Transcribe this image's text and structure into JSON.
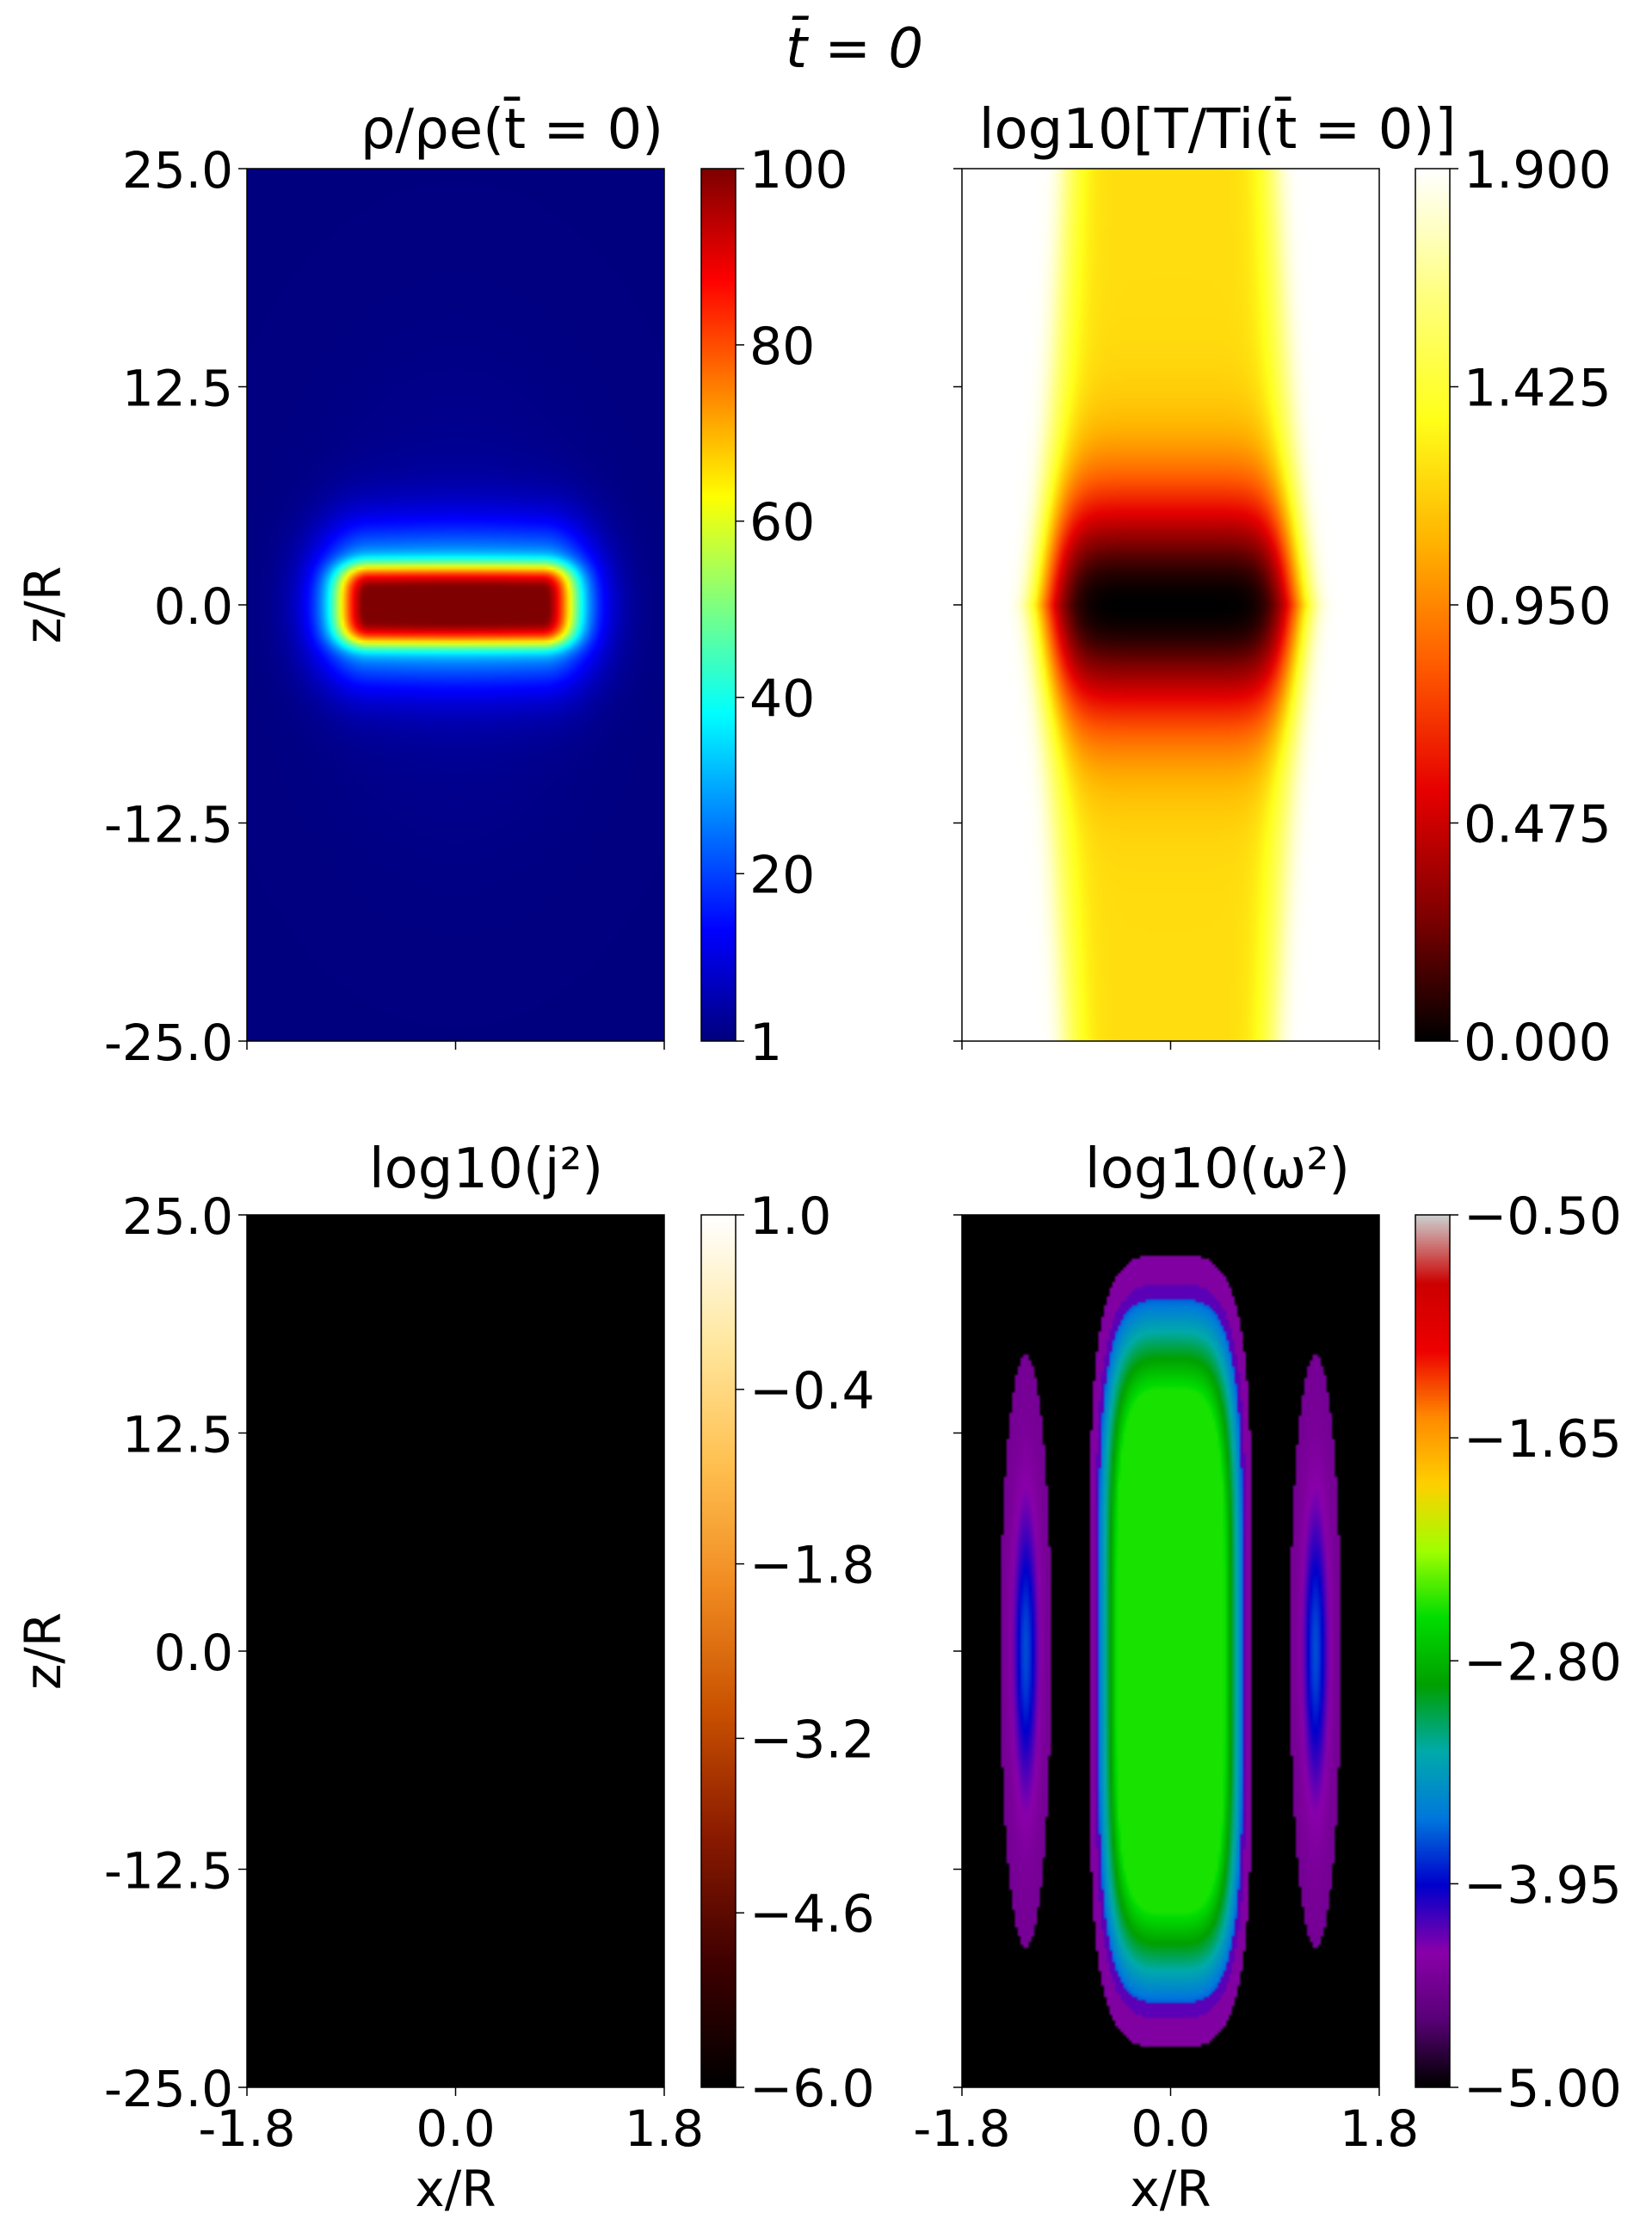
{
  "figure": {
    "title": "t̄ = 0"
  },
  "colormaps": {
    "jet": [
      "#00007f",
      "#0000ff",
      "#007fff",
      "#00ffff",
      "#7fff7f",
      "#ffff00",
      "#ff7f00",
      "#ff0000",
      "#7f0000"
    ],
    "hot": [
      "#000000",
      "#800000",
      "#e60000",
      "#ff5a00",
      "#ffb300",
      "#ffff1a",
      "#ffff80",
      "#ffffff"
    ],
    "afmhot": [
      "#000000",
      "#400000",
      "#8a1a00",
      "#c85000",
      "#f08a20",
      "#ffc050",
      "#ffe8a0",
      "#ffffff"
    ],
    "spectral": [
      "#000000",
      "#5a0078",
      "#8a00aa",
      "#0000cc",
      "#0078dd",
      "#00aaaa",
      "#00a000",
      "#00dd00",
      "#a0ff00",
      "#ffd000",
      "#ff8a00",
      "#ee0000",
      "#cc0000",
      "#cccccc"
    ]
  },
  "chart_data": [
    {
      "id": "density",
      "type": "heatmap",
      "title": "ρ/ρe(t̄ = 0)",
      "xlabel": "",
      "ylabel": "z/R",
      "xlim": [
        -1.8,
        1.8
      ],
      "ylim": [
        -25.0,
        25.0
      ],
      "xticks": [],
      "yticks": [
        "25.0",
        "12.5",
        "0.0",
        "-12.5",
        "-25.0"
      ],
      "colormap": "jet",
      "clim": [
        1,
        100
      ],
      "colorbar_ticks": [
        {
          "value": 1,
          "label": "1"
        },
        {
          "value": 20,
          "label": "20"
        },
        {
          "value": 40,
          "label": "40"
        },
        {
          "value": 60,
          "label": "60"
        },
        {
          "value": 80,
          "label": "80"
        },
        {
          "value": 100,
          "label": "100"
        }
      ],
      "field": "density"
    },
    {
      "id": "temperature",
      "type": "heatmap",
      "title": "log10[T/Ti(t̄ = 0)]",
      "xlabel": "",
      "ylabel": "",
      "xlim": [
        -1.8,
        1.8
      ],
      "ylim": [
        -25.0,
        25.0
      ],
      "xticks": [],
      "yticks": [],
      "colormap": "hot",
      "clim": [
        0.0,
        1.9
      ],
      "colorbar_ticks": [
        {
          "value": 0.0,
          "label": "0.000"
        },
        {
          "value": 0.475,
          "label": "0.475"
        },
        {
          "value": 0.95,
          "label": "0.950"
        },
        {
          "value": 1.425,
          "label": "1.425"
        },
        {
          "value": 1.9,
          "label": "1.900"
        }
      ],
      "field": "temperature"
    },
    {
      "id": "current",
      "type": "heatmap",
      "title": "log10(j²)",
      "xlabel": "x/R",
      "ylabel": "z/R",
      "xlim": [
        -1.8,
        1.8
      ],
      "ylim": [
        -25.0,
        25.0
      ],
      "xticks": [
        "-1.8",
        "0.0",
        "1.8"
      ],
      "yticks": [
        "25.0",
        "12.5",
        "0.0",
        "-12.5",
        "-25.0"
      ],
      "colormap": "afmhot",
      "clim": [
        -6.0,
        1.0
      ],
      "colorbar_ticks": [
        {
          "value": -6.0,
          "label": "−6.0"
        },
        {
          "value": -4.6,
          "label": "−4.6"
        },
        {
          "value": -3.2,
          "label": "−3.2"
        },
        {
          "value": -1.8,
          "label": "−1.8"
        },
        {
          "value": -0.4,
          "label": "−0.4"
        },
        {
          "value": 1.0,
          "label": "1.0"
        }
      ],
      "field": "current"
    },
    {
      "id": "vorticity",
      "type": "heatmap",
      "title": "log10(ω²)",
      "xlabel": "x/R",
      "ylabel": "",
      "xlim": [
        -1.8,
        1.8
      ],
      "ylim": [
        -25.0,
        25.0
      ],
      "xticks": [
        "-1.8",
        "0.0",
        "1.8"
      ],
      "yticks": [],
      "colormap": "spectral",
      "clim": [
        -5.0,
        -0.5
      ],
      "colorbar_ticks": [
        {
          "value": -5.0,
          "label": "−5.00"
        },
        {
          "value": -3.95,
          "label": "−3.95"
        },
        {
          "value": -2.8,
          "label": "−2.80"
        },
        {
          "value": -1.65,
          "label": "−1.65"
        },
        {
          "value": -0.5,
          "label": "−0.50"
        }
      ],
      "field": "vorticity"
    }
  ]
}
